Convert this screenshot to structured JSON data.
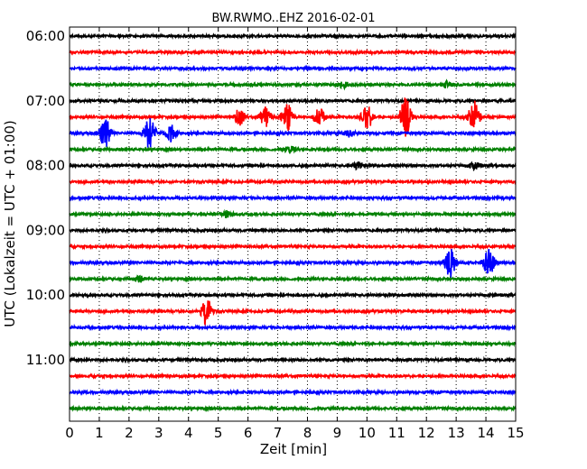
{
  "chart_data": {
    "type": "line",
    "title": "BW.RWMO..EHZ 2016-02-01",
    "xlabel": "Zeit  [min]",
    "ylabel": "UTC (Lokalzeit = UTC + 01:00)",
    "xlim": [
      0,
      15
    ],
    "x_ticks": [
      "0",
      "1",
      "2",
      "3",
      "4",
      "5",
      "6",
      "7",
      "8",
      "9",
      "10",
      "11",
      "12",
      "13",
      "14",
      "15"
    ],
    "y_ticks": [
      "06:00",
      "07:00",
      "08:00",
      "09:00",
      "10:00",
      "11:00"
    ],
    "grid": true,
    "colors": [
      "#000000",
      "#ff0000",
      "#0000ff",
      "#008000"
    ],
    "traces": [
      {
        "start": "06:00",
        "color": "#000000",
        "events": []
      },
      {
        "start": "06:15",
        "color": "#ff0000",
        "events": []
      },
      {
        "start": "06:30",
        "color": "#0000ff",
        "events": []
      },
      {
        "start": "06:45",
        "color": "#008000",
        "events": [
          {
            "t": 9.2,
            "amp": 0.2
          },
          {
            "t": 12.7,
            "amp": 0.2
          }
        ]
      },
      {
        "start": "07:00",
        "color": "#000000",
        "events": []
      },
      {
        "start": "07:15",
        "color": "#ff0000",
        "events": [
          {
            "t": 5.7,
            "amp": 0.5
          },
          {
            "t": 6.6,
            "amp": 0.6
          },
          {
            "t": 7.3,
            "amp": 0.9
          },
          {
            "t": 8.4,
            "amp": 0.6
          },
          {
            "t": 10.0,
            "amp": 0.8
          },
          {
            "t": 11.3,
            "amp": 1.2
          },
          {
            "t": 13.6,
            "amp": 1.0
          }
        ]
      },
      {
        "start": "07:30",
        "color": "#0000ff",
        "events": [
          {
            "t": 1.2,
            "amp": 0.9
          },
          {
            "t": 2.7,
            "amp": 1.0
          },
          {
            "t": 3.4,
            "amp": 0.5
          },
          {
            "t": 9.4,
            "amp": 0.2
          }
        ]
      },
      {
        "start": "07:45",
        "color": "#008000",
        "events": [
          {
            "t": 7.4,
            "amp": 0.2
          }
        ]
      },
      {
        "start": "08:00",
        "color": "#000000",
        "events": [
          {
            "t": 9.7,
            "amp": 0.2
          },
          {
            "t": 13.6,
            "amp": 0.2
          }
        ]
      },
      {
        "start": "08:15",
        "color": "#ff0000",
        "events": []
      },
      {
        "start": "08:30",
        "color": "#0000ff",
        "events": []
      },
      {
        "start": "08:45",
        "color": "#008000",
        "events": [
          {
            "t": 5.3,
            "amp": 0.2
          }
        ]
      },
      {
        "start": "09:00",
        "color": "#000000",
        "events": []
      },
      {
        "start": "09:15",
        "color": "#ff0000",
        "events": []
      },
      {
        "start": "09:30",
        "color": "#0000ff",
        "events": [
          {
            "t": 12.8,
            "amp": 0.9
          },
          {
            "t": 14.1,
            "amp": 0.8
          }
        ]
      },
      {
        "start": "09:45",
        "color": "#008000",
        "events": [
          {
            "t": 2.4,
            "amp": 0.2
          }
        ]
      },
      {
        "start": "10:00",
        "color": "#000000",
        "events": []
      },
      {
        "start": "10:15",
        "color": "#ff0000",
        "events": [
          {
            "t": 4.6,
            "amp": 0.8
          }
        ]
      },
      {
        "start": "10:30",
        "color": "#0000ff",
        "events": []
      },
      {
        "start": "10:45",
        "color": "#008000",
        "events": []
      },
      {
        "start": "11:00",
        "color": "#000000",
        "events": []
      },
      {
        "start": "11:15",
        "color": "#ff0000",
        "events": []
      },
      {
        "start": "11:30",
        "color": "#0000ff",
        "events": []
      },
      {
        "start": "11:45",
        "color": "#008000",
        "events": []
      }
    ]
  }
}
